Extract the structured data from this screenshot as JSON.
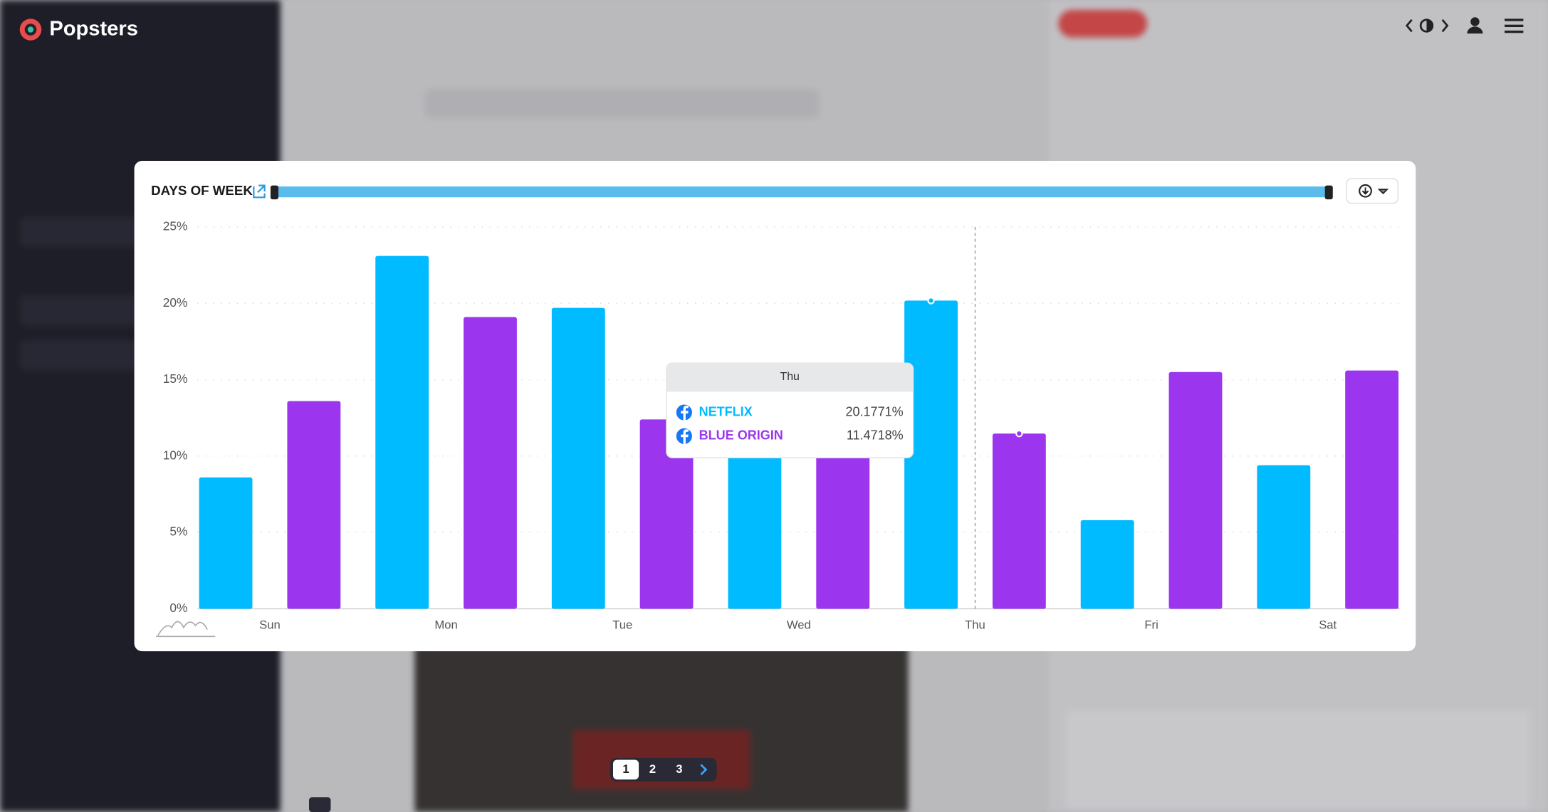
{
  "app": {
    "brand": "Popsters",
    "pagination": [
      "1",
      "2",
      "3"
    ]
  },
  "chart_data": {
    "type": "bar",
    "title": "DAYS OF WEEK",
    "categories": [
      "Sun",
      "Mon",
      "Tue",
      "Wed",
      "Thu",
      "Fri",
      "Sat"
    ],
    "series": [
      {
        "name": "NETFLIX",
        "color": "#00bbff",
        "values": [
          8.6,
          23.1,
          19.7,
          13.2,
          20.1771,
          5.8,
          9.4
        ],
        "value_labels": [
          null,
          null,
          null,
          null,
          "20.1771%",
          null,
          null
        ]
      },
      {
        "name": "BLUE ORIGIN",
        "color": "#9b36ee",
        "values": [
          13.6,
          19.1,
          12.4,
          12.4,
          11.4718,
          15.5,
          15.6
        ],
        "value_labels": [
          null,
          null,
          null,
          null,
          "11.4718%",
          null,
          null
        ]
      }
    ],
    "ylim": [
      0,
      25
    ],
    "yticks": [
      {
        "value": 0,
        "label": "0%"
      },
      {
        "value": 5,
        "label": "5%"
      },
      {
        "value": 10,
        "label": "10%"
      },
      {
        "value": 15,
        "label": "15%"
      },
      {
        "value": 20,
        "label": "20%"
      },
      {
        "value": 25,
        "label": "25%"
      }
    ],
    "grid": true,
    "hover_category": 4
  }
}
